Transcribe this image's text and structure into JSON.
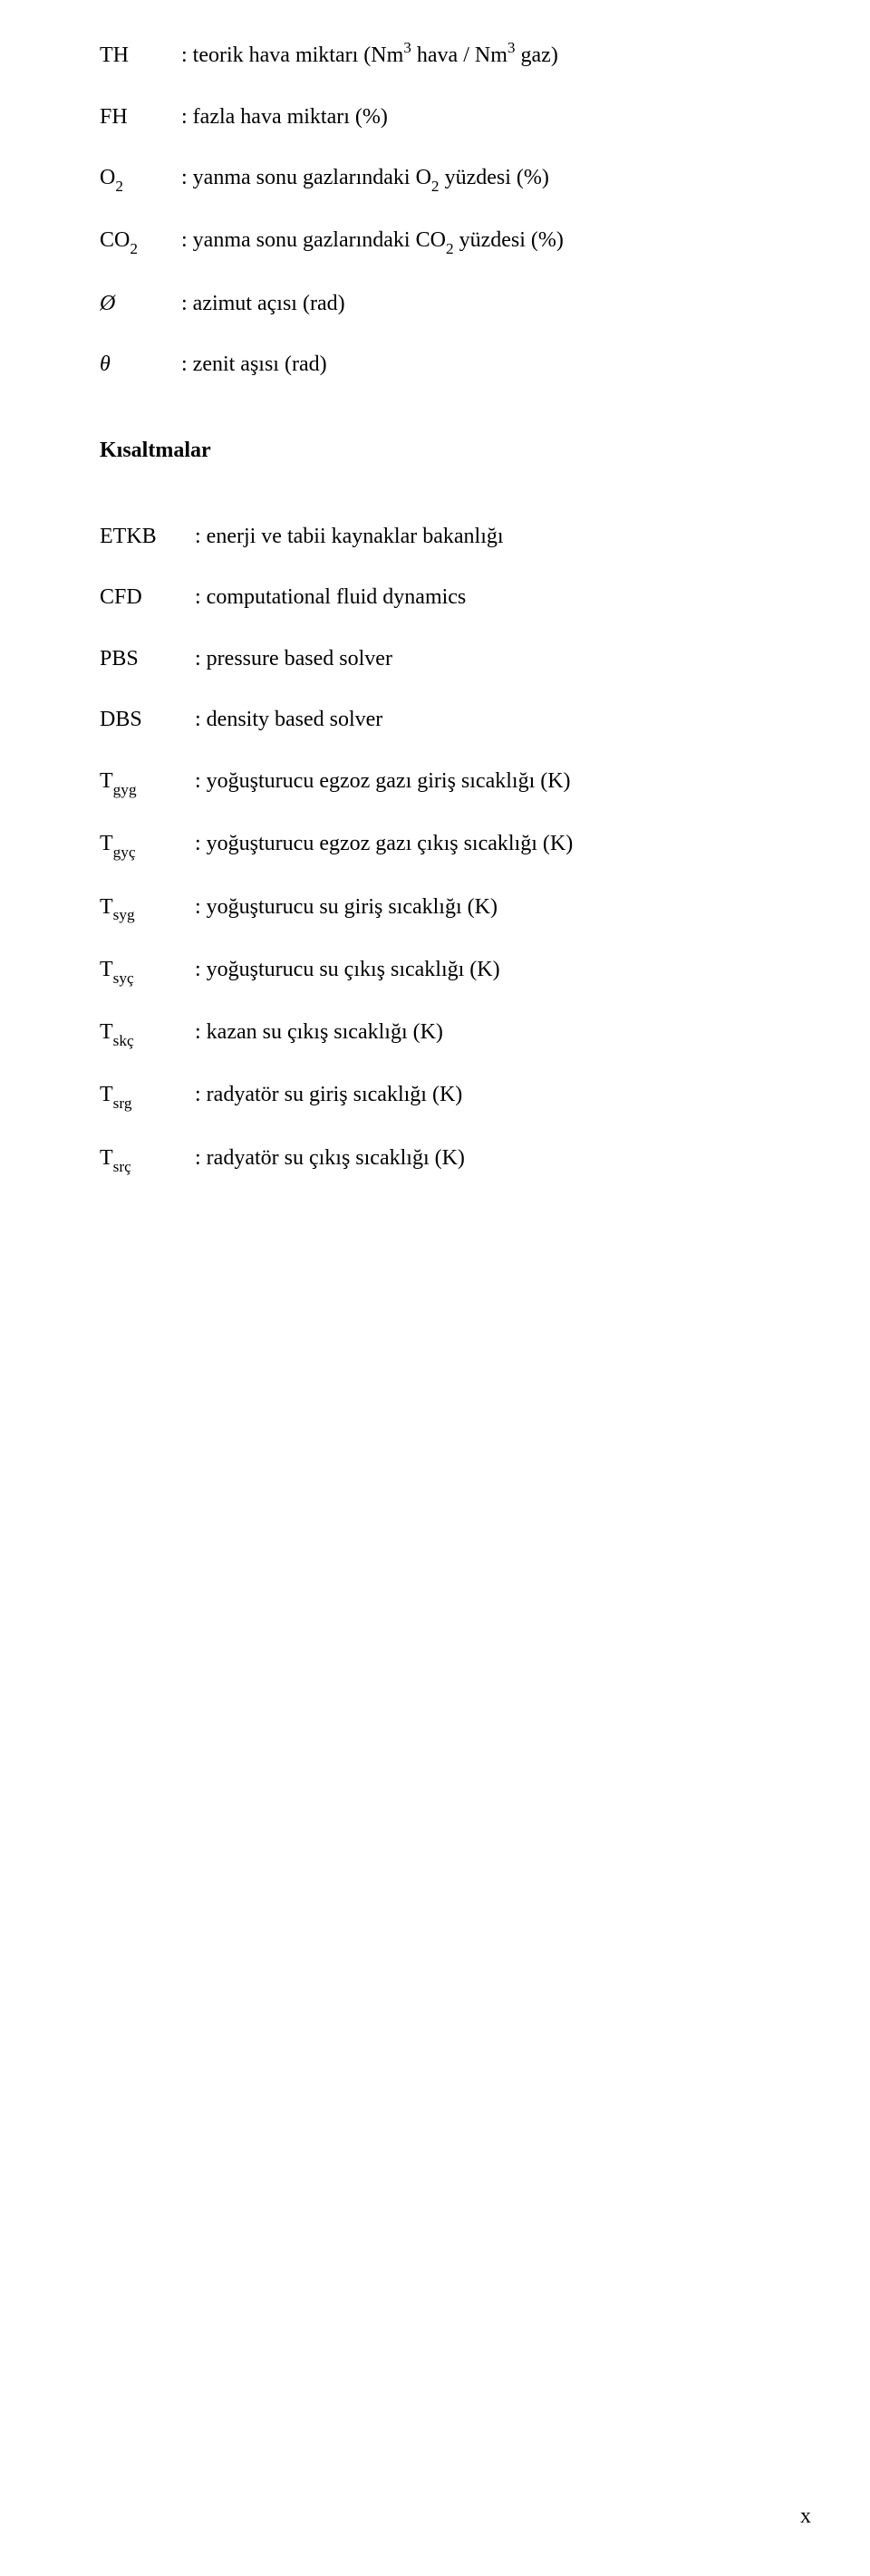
{
  "group1": [
    {
      "sym_html": "TH",
      "desc_html": ": teorik hava  miktarı (Nm<span class='sup'>3</span> hava / Nm<span class='sup'>3</span> gaz)"
    },
    {
      "sym_html": "FH",
      "desc_html": ": fazla hava  miktarı (%)"
    },
    {
      "sym_html": "O<span class='sub'>2</span>",
      "desc_html": ": yanma sonu gazlarındaki O<span class='sub'>2</span> yüzdesi (%)"
    },
    {
      "sym_html": "CO<span class='sub'>2</span>",
      "desc_html": ": yanma sonu gazlarındaki CO<span class='sub'>2</span> yüzdesi (%)"
    },
    {
      "sym_html": "<span class='italic'>Ø</span>",
      "desc_html": ": azimut açısı (rad)"
    },
    {
      "sym_html": "<span class='italic'>θ</span>",
      "desc_html": ": zenit aşısı (rad)"
    }
  ],
  "heading": "Kısaltmalar",
  "group2": [
    {
      "sym_html": "ETKB",
      "desc_html": ": enerji ve tabii kaynaklar bakanlığı"
    },
    {
      "sym_html": "CFD",
      "desc_html": ": computational fluid dynamics"
    },
    {
      "sym_html": "PBS",
      "desc_html": ": pressure based solver"
    },
    {
      "sym_html": "DBS",
      "desc_html": ": density based solver"
    },
    {
      "sym_html": "T<span class='sub'>gyg</span>",
      "desc_html": ": yoğuşturucu egzoz gazı giriş sıcaklığı (K)"
    },
    {
      "sym_html": "T<span class='sub'>gyç</span>",
      "desc_html": ": yoğuşturucu egzoz gazı çıkış sıcaklığı (K)"
    },
    {
      "sym_html": "T<span class='sub'>syg</span>",
      "desc_html": ": yoğuşturucu su giriş sıcaklığı (K)"
    },
    {
      "sym_html": "T<span class='sub'>syç</span>",
      "desc_html": ": yoğuşturucu su çıkış sıcaklığı (K)"
    },
    {
      "sym_html": "T<span class='sub'>skç</span>",
      "desc_html": ": kazan su çıkış sıcaklığı (K)"
    },
    {
      "sym_html": "T<span class='sub'>srg</span>",
      "desc_html": ": radyatör su giriş sıcaklığı (K)"
    },
    {
      "sym_html": "T<span class='sub'>srç</span>",
      "desc_html": ": radyatör su çıkış sıcaklığı (K)"
    }
  ],
  "page_number": "x"
}
